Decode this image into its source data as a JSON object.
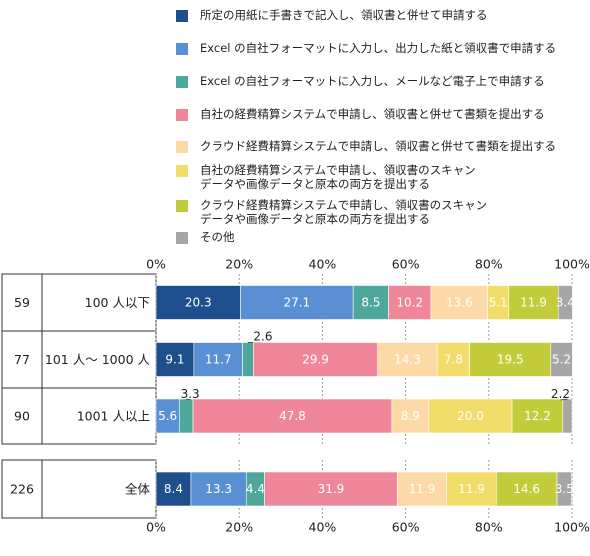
{
  "chart_data": {
    "type": "bar",
    "orientation": "horizontal",
    "stacked": true,
    "legend_position": "top",
    "grid": true,
    "xlim": [
      0,
      100
    ],
    "x_ticks": [
      "0%",
      "20%",
      "40%",
      "60%",
      "80%",
      "100%"
    ],
    "series": [
      {
        "name": "所定の用紙に手書きで記入し、領収書と併せて申請する",
        "color": "#1f4e8c"
      },
      {
        "name": "Excel の自社フォーマットに入力し、出力した紙と領収書で申請する",
        "color": "#5b8fd4"
      },
      {
        "name": "Excel の自社フォーマットに入力し、メールなど電子上で申請する",
        "color": "#4fa79b"
      },
      {
        "name": "自社の経費精算システムで申請し、領収書と併せて書類を提出する",
        "color": "#f0869a"
      },
      {
        "name": "クラウド経費精算システムで申請し、領収書と併せて書類を提出する",
        "color": "#fcd9a6"
      },
      {
        "name": "自社の経費精算システムで申請し、領収書のスキャン\nデータや画像データと原本の両方を提出する",
        "color": "#f2dc6a"
      },
      {
        "name": "クラウド経費精算システムで申請し、領収書のスキャン\nデータや画像データと原本の両方を提出する",
        "color": "#c3cc3a"
      },
      {
        "name": "その他",
        "color": "#a6a6a6"
      }
    ],
    "rows": [
      {
        "n": "59",
        "label": "100 人以下",
        "values": [
          20.3,
          27.1,
          8.5,
          10.2,
          13.6,
          5.1,
          11.9,
          3.4
        ],
        "labels": [
          "20.3",
          "27.1",
          "8.5",
          "10.2",
          "13.6",
          "5.1",
          "11.9",
          "3.4"
        ]
      },
      {
        "n": "77",
        "label": "101 人～ 1000 人",
        "values": [
          9.1,
          11.7,
          2.6,
          29.9,
          14.3,
          7.8,
          19.5,
          5.2
        ],
        "labels": [
          "9.1",
          "11.7",
          "2.6",
          "29.9",
          "14.3",
          "7.8",
          "19.5",
          "5.2"
        ]
      },
      {
        "n": "90",
        "label": "1001 人以上",
        "values": [
          0,
          5.6,
          3.3,
          47.8,
          8.9,
          20.0,
          12.2,
          2.2
        ],
        "labels": [
          "",
          "5.6",
          "3.3",
          "47.8",
          "8.9",
          "20.0",
          "12.2",
          "2.2"
        ]
      },
      {
        "n": "226",
        "label": "全体",
        "values": [
          8.4,
          13.3,
          4.4,
          31.9,
          11.9,
          11.9,
          14.6,
          3.5
        ],
        "labels": [
          "8.4",
          "13.3",
          "4.4",
          "31.9",
          "11.9",
          "11.9",
          "14.6",
          "3.5"
        ]
      }
    ]
  }
}
